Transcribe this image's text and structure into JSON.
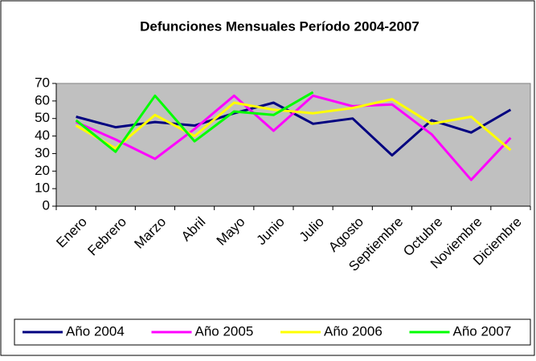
{
  "chart_data": {
    "type": "line",
    "title": "Defunciones  Mensuales Período 2004-2007",
    "categories": [
      "Enero",
      "Febrero",
      "Marzo",
      "Abril",
      "Mayo",
      "Junio",
      "Julio",
      "Agosto",
      "Septiembre",
      "Octubre",
      "Noviembre",
      "Diciembre"
    ],
    "series": [
      {
        "name": "Año 2004",
        "color": "#000080",
        "values": [
          51,
          45,
          48,
          46,
          53,
          59,
          47,
          50,
          29,
          49,
          42,
          55
        ]
      },
      {
        "name": "Año 2005",
        "color": "#ff00ff",
        "values": [
          48,
          38,
          27,
          44,
          63,
          43,
          63,
          57,
          58,
          41,
          15,
          39
        ]
      },
      {
        "name": "Año 2006",
        "color": "#ffff00",
        "values": [
          46,
          33,
          52,
          40,
          59,
          55,
          53,
          56,
          61,
          47,
          51,
          32
        ]
      },
      {
        "name": "Año 2007",
        "color": "#00ff00",
        "values": [
          49,
          31,
          63,
          37,
          54,
          52,
          65,
          null,
          null,
          null,
          null,
          null
        ]
      }
    ],
    "ylim": [
      0,
      70
    ],
    "yticks": [
      0,
      10,
      20,
      30,
      40,
      50,
      60,
      70
    ],
    "grid": false,
    "plot_background": "#c0c0c0",
    "legend": "bottom"
  }
}
